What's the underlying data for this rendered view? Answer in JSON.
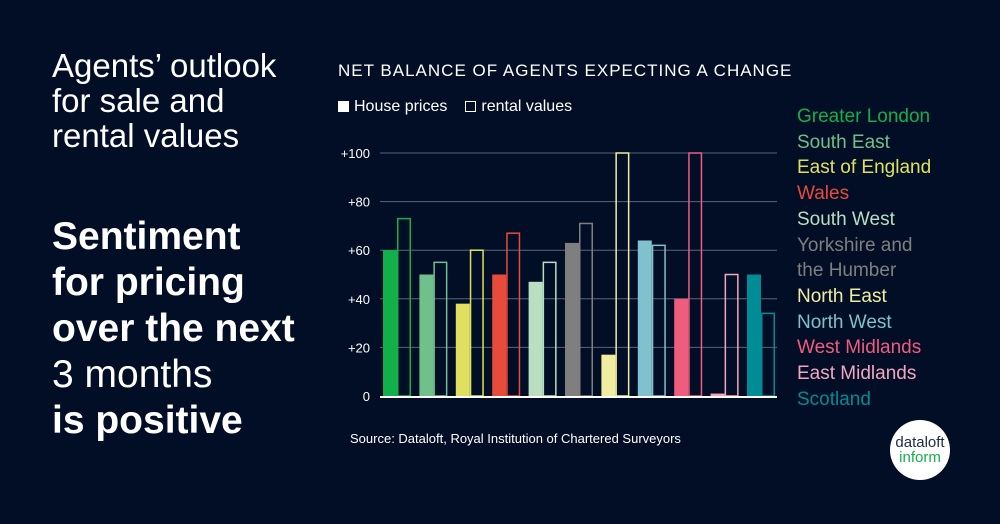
{
  "heading": "Agents’ outlook for sale and rental values",
  "headline": {
    "line1": "Sentiment",
    "line2": "for pricing",
    "line3": "over the next",
    "line4": "3 months",
    "line5": "is positive"
  },
  "source": "Source: Dataloft, Royal Institution of Chartered Surveyors",
  "logo": {
    "line1": "dataloft",
    "line2": "inform",
    "colors": {
      "line1": "#1b2a4a",
      "line2": "#12b04a"
    }
  },
  "chart_data": {
    "type": "bar",
    "title": "NET BALANCE OF AGENTS EXPECTING A CHANGE",
    "categories": [
      "Greater London",
      "South East",
      "East of England",
      "Wales",
      "South West",
      "Yorkshire and the Humber",
      "North East",
      "North West",
      "West Midlands",
      "East Midlands",
      "Scotland"
    ],
    "colors": [
      "#12b04a",
      "#6fc08a",
      "#dfe060",
      "#e84b3a",
      "#b9dfc0",
      "#7f7f7f",
      "#f0eda0",
      "#7fc1cc",
      "#ef5c7e",
      "#f4a6c0",
      "#008c96"
    ],
    "series": [
      {
        "name": "House prices",
        "style": "filled",
        "values": [
          60,
          50,
          38,
          50,
          47,
          63,
          17,
          64,
          40,
          1,
          50
        ]
      },
      {
        "name": "rental values",
        "style": "outline",
        "values": [
          73,
          55,
          60,
          67,
          55,
          71,
          100,
          62,
          100,
          50,
          34
        ]
      }
    ],
    "yticks": [
      "0",
      "+20",
      "+40",
      "+60",
      "+80",
      "+100"
    ],
    "ylim": [
      0,
      100
    ],
    "grid": true,
    "legend": "top-left"
  }
}
